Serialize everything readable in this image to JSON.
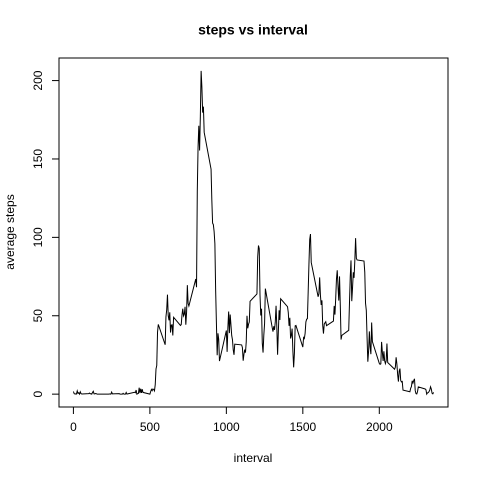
{
  "chart_data": {
    "type": "line",
    "title": "steps vs interval",
    "x_label": "interval",
    "y_label": "average steps",
    "x": [
      0,
      5,
      10,
      15,
      20,
      25,
      30,
      35,
      40,
      45,
      50,
      55,
      100,
      105,
      110,
      115,
      120,
      125,
      130,
      135,
      140,
      145,
      150,
      155,
      200,
      205,
      210,
      215,
      220,
      225,
      230,
      235,
      240,
      245,
      250,
      255,
      300,
      305,
      310,
      315,
      320,
      325,
      330,
      335,
      340,
      345,
      350,
      355,
      400,
      405,
      410,
      415,
      420,
      425,
      430,
      435,
      440,
      445,
      450,
      455,
      500,
      505,
      510,
      515,
      520,
      525,
      530,
      535,
      540,
      545,
      550,
      555,
      600,
      605,
      610,
      615,
      620,
      625,
      630,
      635,
      640,
      645,
      650,
      655,
      700,
      705,
      710,
      715,
      720,
      725,
      730,
      735,
      740,
      745,
      750,
      755,
      800,
      805,
      810,
      815,
      820,
      825,
      830,
      835,
      840,
      845,
      850,
      855,
      900,
      905,
      910,
      915,
      920,
      925,
      930,
      935,
      940,
      945,
      950,
      955,
      1000,
      1005,
      1010,
      1015,
      1020,
      1025,
      1030,
      1035,
      1040,
      1045,
      1050,
      1055,
      1100,
      1105,
      1110,
      1115,
      1120,
      1125,
      1130,
      1135,
      1140,
      1145,
      1150,
      1155,
      1200,
      1205,
      1210,
      1215,
      1220,
      1225,
      1230,
      1235,
      1240,
      1245,
      1250,
      1255,
      1300,
      1305,
      1310,
      1315,
      1320,
      1325,
      1330,
      1335,
      1340,
      1345,
      1350,
      1355,
      1400,
      1405,
      1410,
      1415,
      1420,
      1425,
      1430,
      1435,
      1440,
      1445,
      1450,
      1455,
      1500,
      1505,
      1510,
      1515,
      1520,
      1525,
      1530,
      1535,
      1540,
      1545,
      1550,
      1555,
      1600,
      1605,
      1610,
      1615,
      1620,
      1625,
      1630,
      1635,
      1640,
      1645,
      1650,
      1655,
      1700,
      1705,
      1710,
      1715,
      1720,
      1725,
      1730,
      1735,
      1740,
      1745,
      1750,
      1755,
      1800,
      1805,
      1810,
      1815,
      1820,
      1825,
      1830,
      1835,
      1840,
      1845,
      1850,
      1855,
      1900,
      1905,
      1910,
      1915,
      1920,
      1925,
      1930,
      1935,
      1940,
      1945,
      1950,
      1955,
      2000,
      2005,
      2010,
      2015,
      2020,
      2025,
      2030,
      2035,
      2040,
      2045,
      2050,
      2055,
      2100,
      2105,
      2110,
      2115,
      2120,
      2125,
      2130,
      2135,
      2140,
      2145,
      2150,
      2155,
      2200,
      2205,
      2210,
      2215,
      2220,
      2225,
      2230,
      2235,
      2240,
      2245,
      2250,
      2255,
      2300,
      2305,
      2310,
      2315,
      2320,
      2325,
      2330,
      2335,
      2340,
      2345,
      2350,
      2355
    ],
    "series": [
      {
        "name": "average steps",
        "color": "#000000",
        "values": [
          1.7,
          0.3,
          0.1,
          0.2,
          0.1,
          2.1,
          0.5,
          0.9,
          0,
          1.5,
          0.3,
          0.1,
          0.3,
          0.7,
          0.2,
          0.3,
          0,
          1.1,
          1.8,
          0.2,
          0.2,
          0.4,
          0.3,
          0,
          0,
          0,
          0,
          0,
          0,
          0,
          0,
          0.1,
          0.1,
          0,
          1.3,
          0.2,
          0.3,
          0,
          0,
          0,
          0,
          0.5,
          0,
          0,
          0,
          1.1,
          0,
          0.2,
          1.2,
          0.9,
          2.6,
          0,
          0.3,
          0.5,
          4.1,
          0.7,
          3.5,
          0.8,
          3.1,
          1.1,
          0,
          1.6,
          3,
          2.2,
          3.3,
          3,
          2.1,
          6,
          16,
          18.3,
          39.5,
          44.5,
          31.5,
          49.3,
          53.8,
          63.5,
          50,
          47.1,
          52.2,
          39.3,
          44,
          44.2,
          37.4,
          49,
          43.8,
          44.4,
          50.5,
          54.5,
          49.9,
          51,
          55.7,
          44.3,
          52.3,
          69.5,
          57.8,
          56.2,
          73.4,
          68.2,
          129.4,
          157.5,
          171.2,
          155.4,
          177.3,
          206.2,
          195.9,
          179.6,
          183.4,
          167,
          143.5,
          124,
          109.1,
          108.1,
          103.7,
          96,
          66.2,
          45.2,
          24.8,
          38.8,
          35,
          21.1,
          40.6,
          27,
          42.4,
          52.7,
          38.9,
          50.8,
          44.3,
          37.4,
          34.7,
          28.3,
          25.1,
          31.9,
          31.4,
          29.7,
          21.3,
          25.5,
          28.4,
          26.5,
          33.4,
          50,
          42,
          44.6,
          46,
          59.2,
          63.9,
          87.7,
          94.8,
          92.8,
          63.4,
          50.2,
          54.5,
          32.4,
          26.5,
          37.7,
          45.1,
          67.3,
          42.3,
          39.9,
          43.3,
          41,
          46.2,
          56.4,
          42.8,
          25.1,
          40,
          53.5,
          47.3,
          60.8,
          55.8,
          52,
          43.6,
          48.7,
          35.5,
          37.5,
          41.8,
          27.5,
          17.1,
          26.1,
          43.6,
          43.8,
          30,
          36.1,
          35.5,
          38.8,
          46,
          47.8,
          48.1,
          65.3,
          82.9,
          98.7,
          102.1,
          84,
          62.1,
          64.1,
          74.5,
          63.2,
          56.9,
          59.8,
          43.9,
          38.6,
          44.7,
          45.5,
          46.2,
          43.7,
          46.6,
          56.3,
          50.7,
          61.2,
          73.4,
          79,
          68.9,
          59.7,
          75.1,
          56.5,
          34.8,
          37.5,
          40.7,
          58,
          74.7,
          85.3,
          59.3,
          67.8,
          77.7,
          74.2,
          85.3,
          99.5,
          86.6,
          85.6,
          84.9,
          77.8,
          58,
          53.4,
          36.3,
          20.7,
          27.4,
          40,
          30.2,
          25.5,
          45.7,
          33.5,
          19.6,
          19,
          19.3,
          33.3,
          26.8,
          21.2,
          27.3,
          21.3,
          19.5,
          21.3,
          32.3,
          20.2,
          15.9,
          17.2,
          23.5,
          19.2,
          12.5,
          8,
          14.7,
          16.3,
          8.7,
          7.8,
          8.1,
          2.6,
          1.5,
          3.7,
          4.8,
          8.5,
          7.1,
          8.7,
          9.8,
          2.2,
          0.3,
          0.1,
          1.6,
          4.6,
          3.3,
          2.8,
          0,
          0.8,
          1,
          1.6,
          2.6,
          4.7,
          3.3,
          0.6,
          0.2,
          1.1
        ]
      }
    ],
    "xlim": [
      -94.2,
      2449.2
    ],
    "ylim": [
      -8.2,
      214.4
    ],
    "xticks": [
      0,
      500,
      1000,
      1500,
      2000
    ],
    "yticks": [
      0,
      50,
      100,
      150,
      200
    ]
  }
}
